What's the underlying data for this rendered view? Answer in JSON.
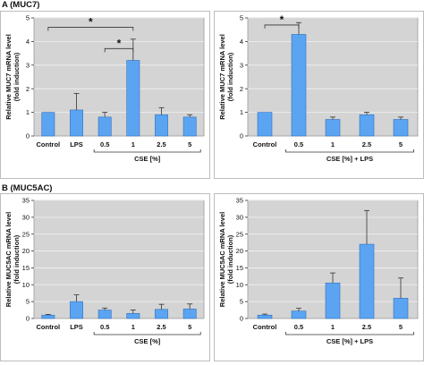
{
  "sections": {
    "a": "A (MUC7)",
    "b": "B (MUC5AC)"
  },
  "colors": {
    "plot_bg": "#d4d4d4",
    "bar": "#5ba4f2",
    "bar_edge": "#2f6fc0",
    "grid": "#f2f2f2"
  },
  "chart_data": [
    {
      "type": "bar",
      "ylabel": "Relative MUC7 mRNA level (fold induction)",
      "ylines": [
        "Relative MUC7 mRNA level",
        "(fold induction)"
      ],
      "ylim": [
        0,
        5
      ],
      "yticks": [
        0,
        1,
        2,
        3,
        4,
        5
      ],
      "grid": true,
      "categories": [
        "Control",
        "LPS",
        "0.5",
        "1",
        "2.5",
        "5"
      ],
      "values": [
        1.0,
        1.1,
        0.8,
        3.2,
        0.9,
        0.8
      ],
      "errors": [
        0.0,
        0.7,
        0.2,
        0.9,
        0.3,
        0.1
      ],
      "group_label": "CSE [%]",
      "group_from": 2,
      "group_to": 5,
      "significance": [
        {
          "from": 0,
          "to": 3,
          "level": 4.6,
          "label": "*"
        },
        {
          "from": 2,
          "to": 3,
          "level": 3.7,
          "label": "*"
        }
      ]
    },
    {
      "type": "bar",
      "ylabel": "Relative MUC7 mRNA level (fold induction)",
      "ylines": [
        "Relative MUC7 mRNA level",
        "(fold induction)"
      ],
      "ylim": [
        0,
        5
      ],
      "yticks": [
        0,
        1,
        2,
        3,
        4,
        5
      ],
      "grid": true,
      "categories": [
        "Control",
        "0.5",
        "1",
        "2.5",
        "5"
      ],
      "values": [
        1.0,
        4.3,
        0.7,
        0.9,
        0.7
      ],
      "errors": [
        0.0,
        0.5,
        0.1,
        0.1,
        0.1
      ],
      "group_label": "CSE [%] + LPS",
      "group_from": 1,
      "group_to": 4,
      "significance": [
        {
          "from": 0,
          "to": 1,
          "level": 4.7,
          "label": "*"
        }
      ]
    },
    {
      "type": "bar",
      "ylabel": "Relative MUC5AC mRNA level (fold induction)",
      "ylines": [
        "Relative MUC5AC mRNA level",
        "(fold induction)"
      ],
      "ylim": [
        0,
        35
      ],
      "yticks": [
        0,
        5,
        10,
        15,
        20,
        25,
        30,
        35
      ],
      "grid": true,
      "categories": [
        "Control",
        "LPS",
        "0.5",
        "1",
        "2.5",
        "5"
      ],
      "values": [
        1.0,
        5.0,
        2.5,
        1.5,
        2.7,
        2.8
      ],
      "errors": [
        0.2,
        2.0,
        0.6,
        1.0,
        1.5,
        1.5
      ],
      "group_label": "CSE [%]",
      "group_from": 2,
      "group_to": 5,
      "significance": []
    },
    {
      "type": "bar",
      "ylabel": "Relative MUC5AC mRNA level (fold induction)",
      "ylines": [
        "Relative MUC5AC mRNA level",
        "(fold induction)"
      ],
      "ylim": [
        0,
        35
      ],
      "yticks": [
        0,
        5,
        10,
        15,
        20,
        25,
        30,
        35
      ],
      "grid": true,
      "categories": [
        "Control",
        "0.5",
        "1",
        "2.5",
        "5"
      ],
      "values": [
        1.0,
        2.2,
        10.5,
        22.0,
        6.0
      ],
      "errors": [
        0.3,
        0.8,
        3.0,
        10.0,
        6.0
      ],
      "group_label": "CSE [%] + LPS",
      "group_from": 1,
      "group_to": 4,
      "significance": []
    }
  ]
}
